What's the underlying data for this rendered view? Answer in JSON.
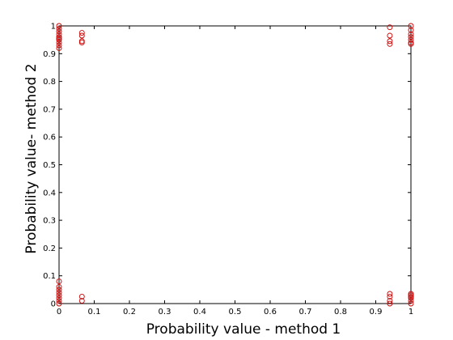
{
  "chart_data": {
    "type": "scatter",
    "title": "",
    "xlabel": "Probability value - method 1",
    "ylabel": "Probability value- method 2",
    "xlim": [
      0,
      1
    ],
    "ylim": [
      0,
      1
    ],
    "xticks": [
      "0",
      "0.1",
      "0.2",
      "0.3",
      "0.4",
      "0.5",
      "0.6",
      "0.7",
      "0.8",
      "0.9",
      "1"
    ],
    "yticks": [
      "0",
      "0.1",
      "0.2",
      "0.3",
      "0.4",
      "0.5",
      "0.6",
      "0.7",
      "0.8",
      "0.9",
      "1"
    ],
    "grid": false,
    "marker": "circle-open",
    "marker_color": "#cc0000",
    "series": [
      {
        "points": [
          [
            0.0,
            1.0
          ],
          [
            0.0,
            0.99
          ],
          [
            0.0,
            0.98
          ],
          [
            0.0,
            0.97
          ],
          [
            0.0,
            0.96
          ],
          [
            0.0,
            0.955
          ],
          [
            0.0,
            0.95
          ],
          [
            0.0,
            0.94
          ],
          [
            0.0,
            0.93
          ],
          [
            0.0,
            0.92
          ],
          [
            0.0,
            0.08
          ],
          [
            0.0,
            0.06
          ],
          [
            0.0,
            0.05
          ],
          [
            0.0,
            0.04
          ],
          [
            0.0,
            0.03
          ],
          [
            0.0,
            0.02
          ],
          [
            0.0,
            0.01
          ],
          [
            0.0,
            0.0
          ],
          [
            0.065,
            0.975
          ],
          [
            0.065,
            0.965
          ],
          [
            0.065,
            0.945
          ],
          [
            0.065,
            0.94
          ],
          [
            0.065,
            0.025
          ],
          [
            0.065,
            0.01
          ],
          [
            0.94,
            0.995
          ],
          [
            0.94,
            0.965
          ],
          [
            0.94,
            0.945
          ],
          [
            0.94,
            0.935
          ],
          [
            0.94,
            0.035
          ],
          [
            0.94,
            0.025
          ],
          [
            0.94,
            0.01
          ],
          [
            0.94,
            0.0
          ],
          [
            1.0,
            1.0
          ],
          [
            1.0,
            0.985
          ],
          [
            1.0,
            0.97
          ],
          [
            1.0,
            0.96
          ],
          [
            1.0,
            0.95
          ],
          [
            1.0,
            0.94
          ],
          [
            1.0,
            0.935
          ],
          [
            1.0,
            0.035
          ],
          [
            1.0,
            0.03
          ],
          [
            1.0,
            0.025
          ],
          [
            1.0,
            0.02
          ],
          [
            1.0,
            0.01
          ],
          [
            1.0,
            0.0
          ]
        ]
      }
    ]
  }
}
